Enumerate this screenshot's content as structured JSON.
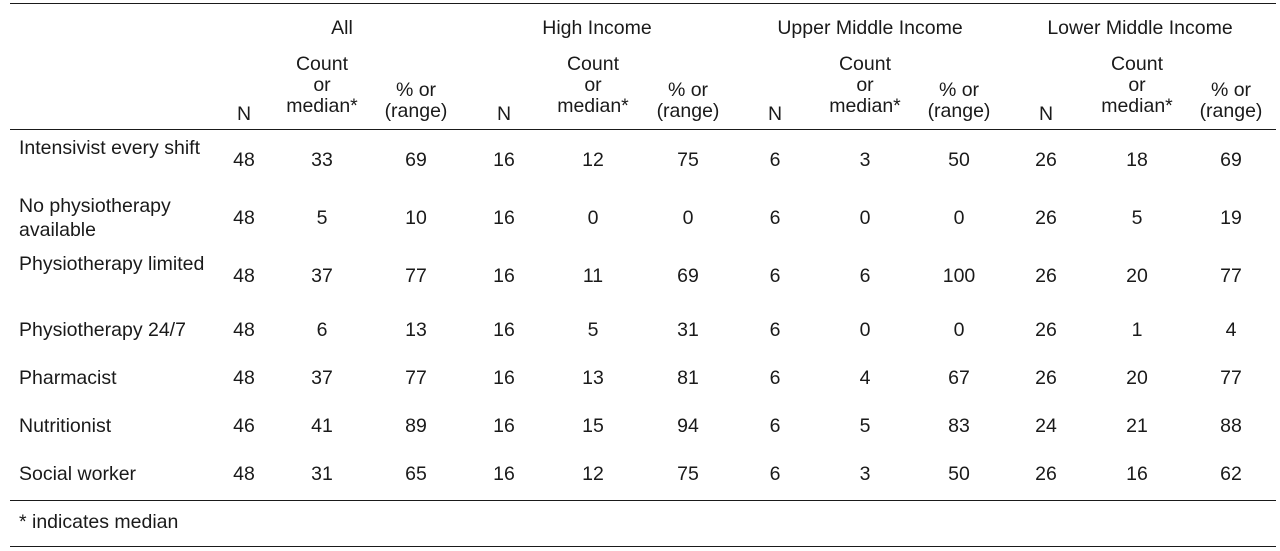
{
  "groups": [
    "All",
    "High Income",
    "Upper Middle Income",
    "Lower Middle Income"
  ],
  "subheaders": {
    "n": "N",
    "count": [
      "Count",
      "or",
      "median*"
    ],
    "pct": [
      "% or",
      "(range)"
    ]
  },
  "rows": [
    {
      "label": "Intensivist every shift",
      "values": [
        "48",
        "33",
        "69",
        "16",
        "12",
        "75",
        "6",
        "3",
        "50",
        "26",
        "18",
        "69"
      ]
    },
    {
      "label": "No physiotherapy available",
      "values": [
        "48",
        "5",
        "10",
        "16",
        "0",
        "0",
        "6",
        "0",
        "0",
        "26",
        "5",
        "19"
      ]
    },
    {
      "label": "Physiotherapy limited",
      "values": [
        "48",
        "37",
        "77",
        "16",
        "11",
        "69",
        "6",
        "6",
        "100",
        "26",
        "20",
        "77"
      ]
    },
    {
      "label": "Physiotherapy 24/7",
      "values": [
        "48",
        "6",
        "13",
        "16",
        "5",
        "31",
        "6",
        "0",
        "0",
        "26",
        "1",
        "4"
      ]
    },
    {
      "label": "Pharmacist",
      "values": [
        "48",
        "37",
        "77",
        "16",
        "13",
        "81",
        "6",
        "4",
        "67",
        "26",
        "20",
        "77"
      ]
    },
    {
      "label": "Nutritionist",
      "values": [
        "46",
        "41",
        "89",
        "16",
        "15",
        "94",
        "6",
        "5",
        "83",
        "24",
        "21",
        "88"
      ]
    },
    {
      "label": "Social worker",
      "values": [
        "48",
        "31",
        "65",
        "16",
        "12",
        "75",
        "6",
        "3",
        "50",
        "26",
        "16",
        "62"
      ]
    }
  ],
  "footnote": "* indicates median"
}
